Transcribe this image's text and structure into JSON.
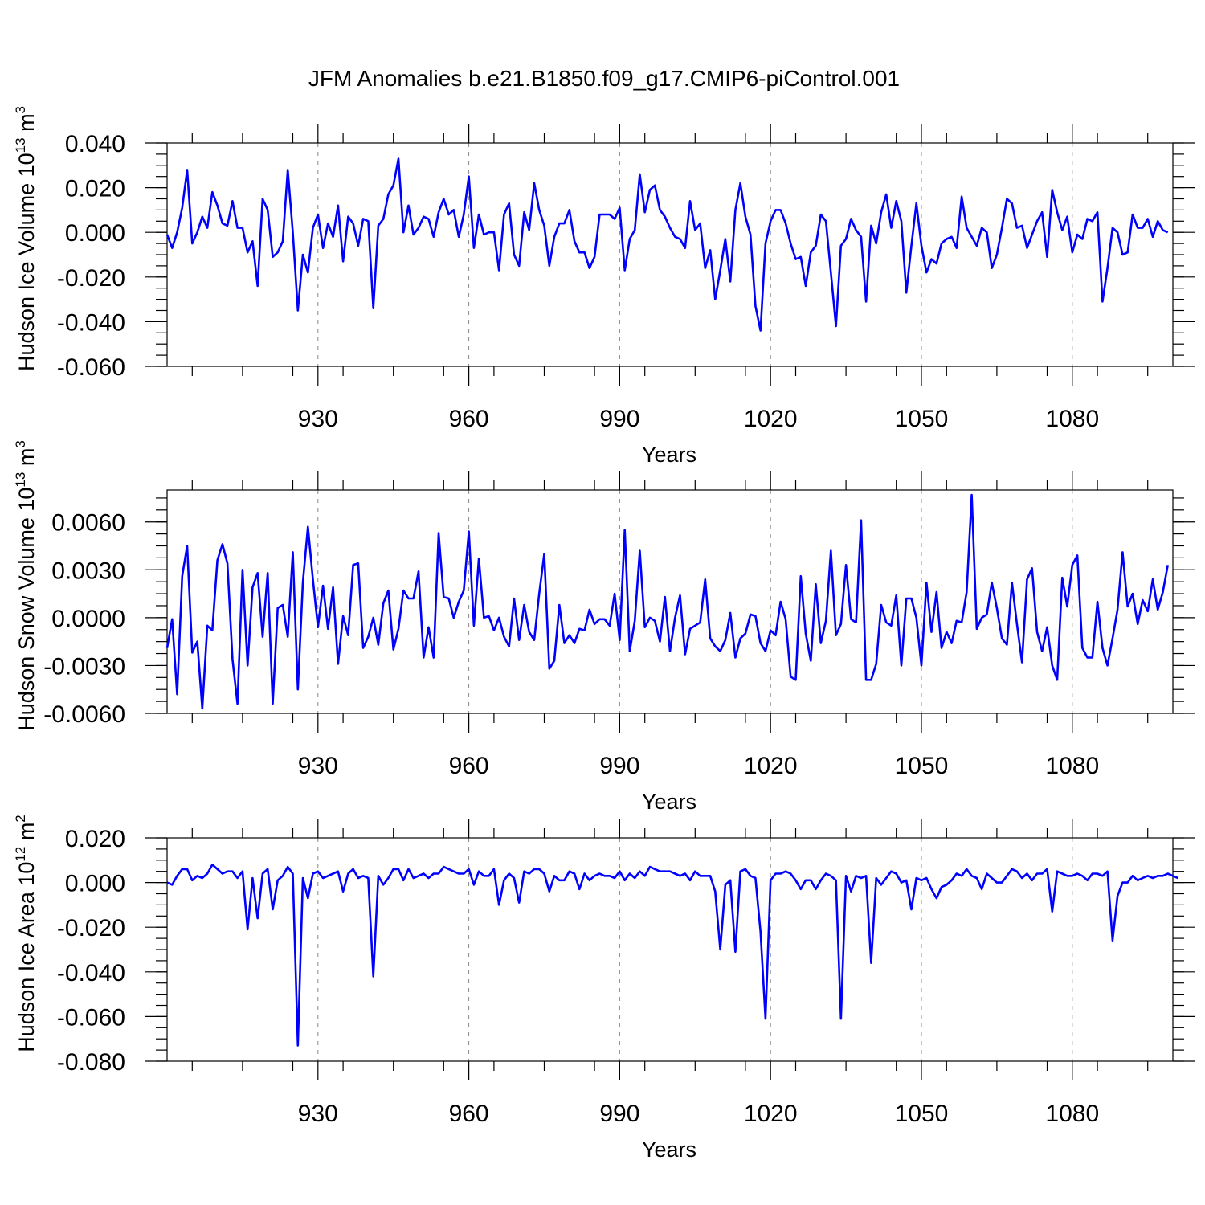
{
  "figure": {
    "title": "JFM Anomalies b.e21.B1850.f09_g17.CMIP6-piControl.001",
    "line_color": "#0000ff"
  },
  "chart_data": [
    {
      "type": "line",
      "title": "",
      "xlabel": "Years",
      "ylabel": "Hudson Ice Volume",
      "yunit_base": "10",
      "yunit_exp": "13",
      "yunit_sym": "m",
      "yunit_pow": "3",
      "xlim": [
        900,
        1100
      ],
      "ylim": [
        -0.06,
        0.04
      ],
      "xticks": [
        930,
        960,
        990,
        1020,
        1050,
        1080
      ],
      "xtick_labels": [
        "930",
        "960",
        "990",
        "1020",
        "1050",
        "1080"
      ],
      "yticks": [
        -0.06,
        -0.04,
        -0.02,
        0.0,
        0.02,
        0.04
      ],
      "ytick_labels": [
        "-0.060",
        "-0.040",
        "-0.020",
        "0.000",
        "0.020",
        "0.040"
      ],
      "grid": "dashed vertical at x ticks",
      "x_start": 900,
      "values": [
        -0.001,
        -0.007,
        0.0,
        0.011,
        0.028,
        -0.005,
        0.0,
        0.007,
        0.002,
        0.018,
        0.012,
        0.004,
        0.003,
        0.014,
        0.002,
        0.002,
        -0.009,
        -0.004,
        -0.024,
        0.015,
        0.01,
        -0.011,
        -0.009,
        -0.004,
        0.028,
        0.0,
        -0.035,
        -0.01,
        -0.018,
        0.002,
        0.008,
        -0.007,
        0.004,
        -0.002,
        0.012,
        -0.013,
        0.007,
        0.004,
        -0.006,
        0.006,
        0.005,
        -0.034,
        0.003,
        0.006,
        0.017,
        0.021,
        0.033,
        0.0,
        0.012,
        -0.001,
        0.002,
        0.007,
        0.006,
        -0.002,
        0.009,
        0.015,
        0.008,
        0.01,
        -0.002,
        0.008,
        0.025,
        -0.007,
        0.008,
        -0.001,
        0.0,
        0.0,
        -0.017,
        0.008,
        0.013,
        -0.01,
        -0.015,
        0.009,
        0.001,
        0.022,
        0.01,
        0.003,
        -0.015,
        -0.002,
        0.004,
        0.004,
        0.01,
        -0.004,
        -0.009,
        -0.009,
        -0.016,
        -0.011,
        0.008,
        0.008,
        0.008,
        0.006,
        0.011,
        -0.017,
        -0.003,
        0.001,
        0.026,
        0.009,
        0.019,
        0.021,
        0.01,
        0.007,
        0.002,
        -0.002,
        -0.003,
        -0.007,
        0.014,
        0.001,
        0.004,
        -0.016,
        -0.008,
        -0.03,
        -0.017,
        -0.003,
        -0.022,
        0.01,
        0.022,
        0.007,
        -0.001,
        -0.033,
        -0.044,
        -0.005,
        0.005,
        0.01,
        0.01,
        0.004,
        -0.005,
        -0.012,
        -0.011,
        -0.024,
        -0.009,
        -0.006,
        0.008,
        0.005,
        -0.018,
        -0.042,
        -0.006,
        -0.003,
        0.006,
        0.001,
        -0.002,
        -0.031,
        0.003,
        -0.005,
        0.009,
        0.017,
        0.002,
        0.014,
        0.005,
        -0.027,
        -0.006,
        0.013,
        -0.006,
        -0.018,
        -0.012,
        -0.014,
        -0.005,
        -0.003,
        -0.002,
        -0.007,
        0.016,
        0.002,
        -0.002,
        -0.006,
        0.002,
        0.0,
        -0.016,
        -0.01,
        0.002,
        0.015,
        0.013,
        0.002,
        0.003,
        -0.007,
        -0.001,
        0.005,
        0.009,
        -0.011,
        0.019,
        0.009,
        0.001,
        0.007,
        -0.009,
        -0.001,
        -0.003,
        0.006,
        0.005,
        0.009,
        -0.031,
        -0.016,
        0.002,
        0.0,
        -0.01,
        -0.009,
        0.008,
        0.002,
        0.002,
        0.006,
        -0.002,
        0.005,
        0.001,
        0.0
      ]
    },
    {
      "type": "line",
      "title": "",
      "xlabel": "Years",
      "ylabel": "Hudson Snow Volume",
      "yunit_base": "10",
      "yunit_exp": "13",
      "yunit_sym": "m",
      "yunit_pow": "3",
      "xlim": [
        900,
        1100
      ],
      "ylim": [
        -0.006,
        0.008
      ],
      "xticks": [
        930,
        960,
        990,
        1020,
        1050,
        1080
      ],
      "xtick_labels": [
        "930",
        "960",
        "990",
        "1020",
        "1050",
        "1080"
      ],
      "yticks": [
        -0.006,
        -0.003,
        0.0,
        0.003,
        0.006
      ],
      "ytick_labels": [
        "-0.0060",
        "-0.0030",
        "0.0000",
        "0.0030",
        "0.0060"
      ],
      "grid": "dashed vertical at x ticks",
      "x_start": 900,
      "values": [
        -0.0019,
        -0.0001,
        -0.0048,
        0.0026,
        0.0045,
        -0.0022,
        -0.0015,
        -0.0057,
        -0.0005,
        -0.0008,
        0.0036,
        0.0046,
        0.0034,
        -0.0026,
        -0.0054,
        0.003,
        -0.003,
        0.0019,
        0.0028,
        -0.0012,
        0.0028,
        -0.0054,
        0.0006,
        0.0008,
        -0.0012,
        0.0041,
        -0.0045,
        0.0022,
        0.0057,
        0.0024,
        -0.0006,
        0.002,
        -0.0007,
        0.0019,
        -0.0029,
        0.0001,
        -0.0011,
        0.0033,
        0.0034,
        -0.0019,
        -0.0012,
        0.0,
        -0.0017,
        0.0009,
        0.0017,
        -0.002,
        -0.0007,
        0.0017,
        0.0012,
        0.0012,
        0.0029,
        -0.0025,
        -0.0006,
        -0.0025,
        0.0053,
        0.0013,
        0.0012,
        0.0,
        0.001,
        0.0017,
        0.0054,
        -0.0005,
        0.0037,
        0.0,
        0.0001,
        -0.0008,
        0.0,
        -0.0012,
        -0.0018,
        0.0012,
        -0.0014,
        0.0008,
        -0.0009,
        -0.0014,
        0.0015,
        0.004,
        -0.0032,
        -0.0027,
        0.0008,
        -0.0016,
        -0.0011,
        -0.0016,
        -0.0007,
        -0.0008,
        0.0005,
        -0.0004,
        -0.0001,
        -0.0001,
        -0.0005,
        0.0015,
        -0.0014,
        0.0055,
        -0.0021,
        -0.0002,
        0.0042,
        -0.0006,
        0.0,
        -0.0002,
        -0.0015,
        0.0013,
        -0.0021,
        0.0,
        0.0014,
        -0.0023,
        -0.0007,
        -0.0005,
        -0.0003,
        0.0024,
        -0.0013,
        -0.0018,
        -0.0021,
        -0.0014,
        0.0003,
        -0.0025,
        -0.0013,
        -0.001,
        0.0002,
        0.0001,
        -0.0016,
        -0.0021,
        -0.0008,
        -0.0011,
        0.001,
        -0.0001,
        -0.0037,
        -0.0039,
        0.0026,
        -0.001,
        -0.0027,
        0.0021,
        -0.0016,
        -0.0002,
        0.0042,
        -0.0011,
        -0.0004,
        0.0033,
        -0.0001,
        -0.0003,
        0.0061,
        -0.0039,
        -0.0039,
        -0.0029,
        0.0008,
        -0.0003,
        -0.0005,
        0.0014,
        -0.003,
        0.0012,
        0.0012,
        0.0,
        -0.003,
        0.0022,
        -0.0009,
        0.0016,
        -0.0019,
        -0.0009,
        -0.0016,
        -0.0002,
        -0.0003,
        0.0016,
        0.0077,
        -0.0007,
        0.0,
        0.0002,
        0.0022,
        0.0006,
        -0.0013,
        -0.0017,
        0.0022,
        -0.0004,
        -0.0028,
        0.0024,
        0.0031,
        -0.0009,
        -0.0021,
        -0.0006,
        -0.003,
        -0.0039,
        0.0025,
        0.0007,
        0.0033,
        0.0039,
        -0.0019,
        -0.0025,
        -0.0025,
        0.001,
        -0.0019,
        -0.003,
        -0.0013,
        0.0005,
        0.0041,
        0.0007,
        0.0015,
        -0.0004,
        0.0011,
        0.0004,
        0.0024,
        0.0005,
        0.0016,
        0.0033
      ]
    },
    {
      "type": "line",
      "title": "",
      "xlabel": "Years",
      "ylabel": "Hudson Ice Area",
      "yunit_base": "10",
      "yunit_exp": "12",
      "yunit_sym": "m",
      "yunit_pow": "2",
      "xlim": [
        900,
        1100
      ],
      "ylim": [
        -0.08,
        0.02
      ],
      "xticks": [
        930,
        960,
        990,
        1020,
        1050,
        1080
      ],
      "xtick_labels": [
        "930",
        "960",
        "990",
        "1020",
        "1050",
        "1080"
      ],
      "yticks": [
        -0.08,
        -0.06,
        -0.04,
        -0.02,
        0.0,
        0.02
      ],
      "ytick_labels": [
        "-0.080",
        "-0.060",
        "-0.040",
        "-0.020",
        "0.000",
        "0.020"
      ],
      "grid": "dashed vertical at x ticks",
      "x_start": 900,
      "values": [
        0.0,
        -0.001,
        0.003,
        0.006,
        0.006,
        0.001,
        0.003,
        0.002,
        0.004,
        0.008,
        0.006,
        0.004,
        0.005,
        0.005,
        0.002,
        0.005,
        -0.021,
        0.002,
        -0.016,
        0.004,
        0.006,
        -0.012,
        0.001,
        0.003,
        0.007,
        0.004,
        -0.073,
        0.002,
        -0.007,
        0.004,
        0.005,
        0.002,
        0.003,
        0.004,
        0.005,
        -0.004,
        0.004,
        0.006,
        0.002,
        0.003,
        0.002,
        -0.042,
        0.003,
        -0.001,
        0.002,
        0.006,
        0.006,
        0.001,
        0.006,
        0.002,
        0.003,
        0.004,
        0.002,
        0.004,
        0.004,
        0.007,
        0.006,
        0.005,
        0.004,
        0.004,
        0.006,
        -0.001,
        0.005,
        0.003,
        0.003,
        0.006,
        -0.01,
        0.001,
        0.004,
        0.002,
        -0.009,
        0.005,
        0.004,
        0.006,
        0.006,
        0.004,
        -0.004,
        0.003,
        0.001,
        0.001,
        0.005,
        0.004,
        -0.003,
        0.004,
        0.001,
        0.003,
        0.004,
        0.003,
        0.003,
        0.002,
        0.005,
        0.001,
        0.004,
        0.002,
        0.005,
        0.003,
        0.007,
        0.006,
        0.005,
        0.005,
        0.005,
        0.004,
        0.003,
        0.004,
        0.001,
        0.005,
        0.003,
        0.003,
        0.003,
        -0.004,
        -0.03,
        -0.001,
        0.001,
        -0.031,
        0.005,
        0.006,
        0.003,
        0.002,
        -0.022,
        -0.061,
        0.001,
        0.004,
        0.004,
        0.005,
        0.004,
        0.001,
        -0.003,
        0.001,
        0.001,
        -0.003,
        0.001,
        0.004,
        0.003,
        0.001,
        -0.061,
        0.003,
        -0.004,
        0.003,
        0.002,
        0.003,
        -0.036,
        0.002,
        -0.001,
        0.002,
        0.005,
        0.004,
        0.0,
        0.001,
        -0.012,
        0.002,
        0.001,
        0.002,
        -0.003,
        -0.007,
        -0.002,
        -0.001,
        0.001,
        0.004,
        0.003,
        0.006,
        0.003,
        0.002,
        -0.003,
        0.004,
        0.002,
        0.0,
        0.0,
        0.003,
        0.006,
        0.005,
        0.002,
        0.004,
        0.001,
        0.004,
        0.004,
        0.006,
        -0.013,
        0.005,
        0.004,
        0.003,
        0.003,
        0.004,
        0.003,
        0.001,
        0.004,
        0.004,
        0.003,
        0.005,
        -0.026,
        -0.006,
        0.0,
        0.0,
        0.003,
        0.001,
        0.002,
        0.003,
        0.002,
        0.003,
        0.003,
        0.004,
        0.003,
        0.002
      ]
    }
  ]
}
